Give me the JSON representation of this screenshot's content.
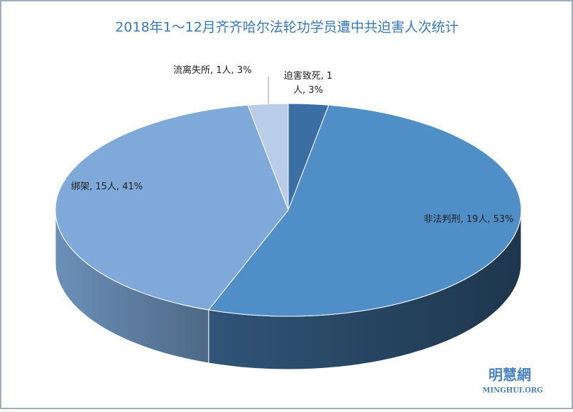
{
  "chart_data": {
    "type": "pie3d",
    "title": "2018年1～12月齐齐哈尔法轮功学员遭中共迫害人次统计",
    "labels": [
      "迫害致死, 1人, 3%",
      "非法判刑, 19人, 53%",
      "绑架, 15人, 41%",
      "流离失所, 1人, 3%"
    ],
    "values": [
      1,
      19,
      15,
      1
    ],
    "colors": [
      "#3b6ea3",
      "#508ec8",
      "#7ea9d9",
      "#b9cde8"
    ]
  },
  "watermark": {
    "name": "明慧網",
    "url": "MINGHUI.ORG"
  }
}
